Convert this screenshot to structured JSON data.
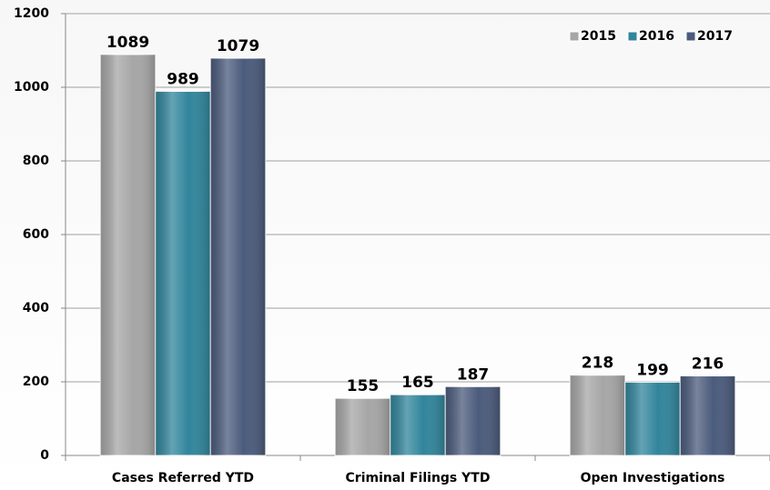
{
  "chart_data": {
    "type": "bar",
    "categories": [
      "Cases Referred YTD",
      "Criminal Filings YTD",
      "Open Investigations"
    ],
    "series": [
      {
        "name": "2015",
        "color": "#a6a6a6",
        "values": [
          1089,
          155,
          218
        ]
      },
      {
        "name": "2016",
        "color": "#31859c",
        "values": [
          989,
          165,
          199
        ]
      },
      {
        "name": "2017",
        "color": "#4b5b7c",
        "values": [
          1079,
          187,
          216
        ]
      }
    ],
    "ylim": [
      0,
      1200
    ],
    "yticks": [
      0,
      200,
      400,
      600,
      800,
      1000,
      1200
    ],
    "grid": true,
    "legend": "top-right"
  }
}
